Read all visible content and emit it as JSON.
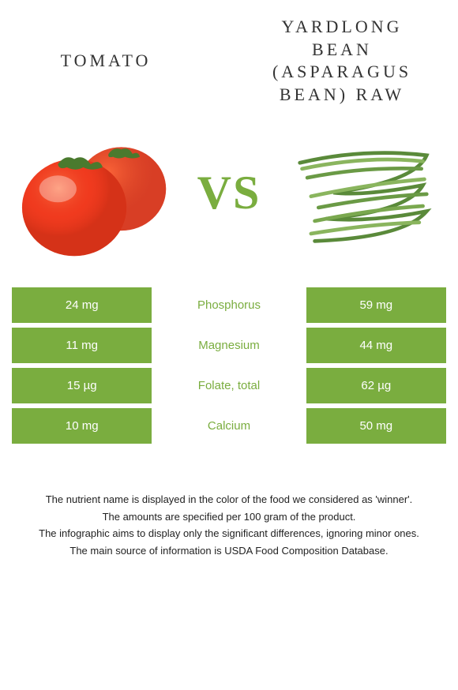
{
  "foods": {
    "left": {
      "title": "TOMATO",
      "color": "#e74c3c"
    },
    "right": {
      "title": "YARDLONG BEAN (ASPARAGUS BEAN) RAW",
      "color": "#7aad3f"
    }
  },
  "vs_label": "VS",
  "nutrients": [
    {
      "name": "Phosphorus",
      "left_value": "24 mg",
      "right_value": "59 mg",
      "winner": "right"
    },
    {
      "name": "Magnesium",
      "left_value": "11 mg",
      "right_value": "44 mg",
      "winner": "right"
    },
    {
      "name": "Folate, total",
      "left_value": "15 µg",
      "right_value": "62 µg",
      "winner": "right"
    },
    {
      "name": "Calcium",
      "left_value": "10 mg",
      "right_value": "50 mg",
      "winner": "right"
    }
  ],
  "styling": {
    "cell_bg": "#7aad3f",
    "cell_text": "#ffffff",
    "background": "#ffffff",
    "title_fontsize": 22,
    "title_letterspacing": 4,
    "vs_color": "#7aad3f",
    "vs_fontsize": 60,
    "table_fontsize": 15,
    "footnote_fontsize": 13
  },
  "footnotes": [
    "The nutrient name is displayed in the color of the food we considered as 'winner'.",
    "The amounts are specified per 100 gram of the product.",
    "The infographic aims to display only the significant differences, ignoring minor ones.",
    "The main source of information is USDA Food Composition Database."
  ]
}
